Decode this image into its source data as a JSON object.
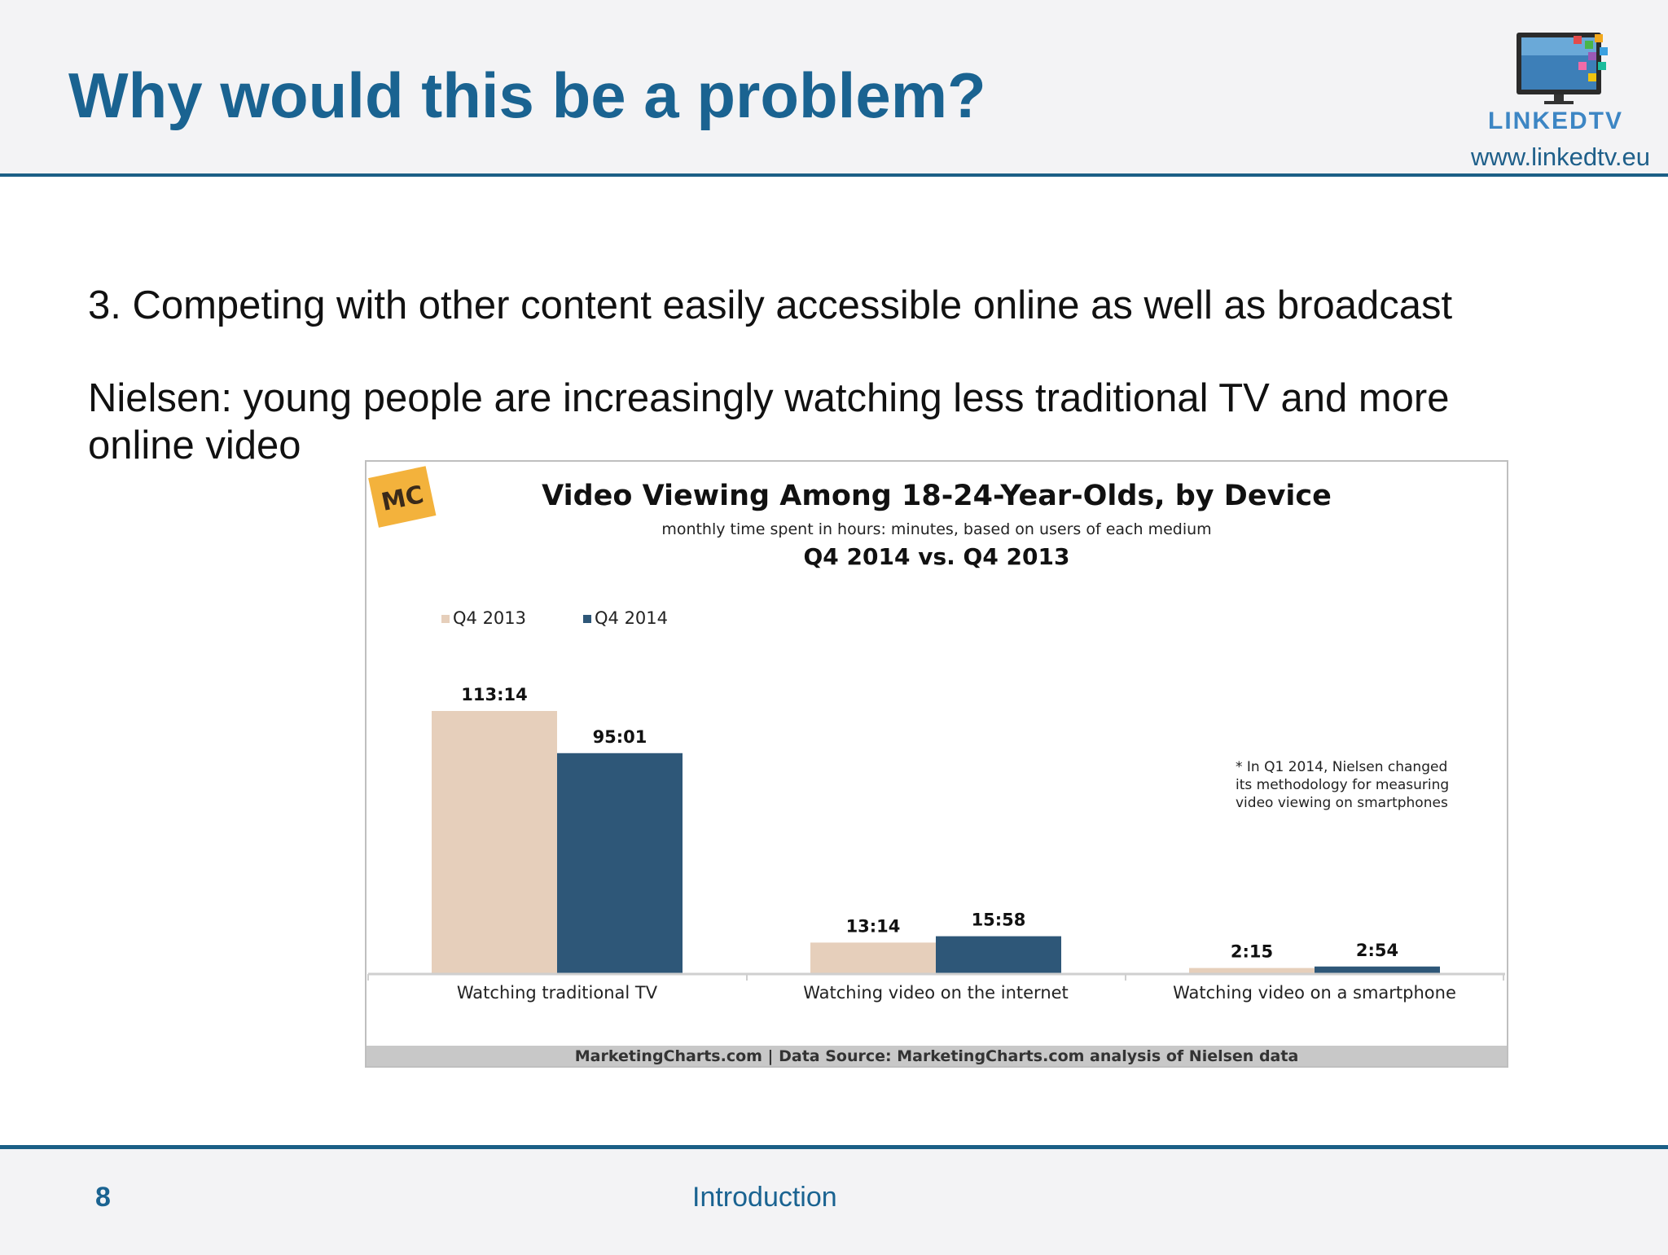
{
  "slide": {
    "title": "Why would this be a problem?",
    "logo_text": "LINKEDTV",
    "logo_url": "www.linkedtv.eu",
    "point": "3. Competing with other content easily accessible online as well as broadcast",
    "nielsen": "Nielsen: young people are increasingly watching less traditional TV and more online video",
    "page_number": "8",
    "section": "Introduction"
  },
  "colors": {
    "accent": "#1a6391",
    "q4_2013": "#e6cfbb",
    "q4_2014": "#2e5778",
    "source_bar": "#c8c8c8",
    "mc_logo": "#f3b23c"
  },
  "chart_data": {
    "type": "bar",
    "logo": "MC",
    "title": "Video Viewing Among 18-24-Year-Olds, by Device",
    "subtitle": "monthly time spent in hours: minutes, based on users of each medium",
    "subtitle2": "Q4 2014 vs. Q4 2013",
    "categories": [
      "Watching traditional TV",
      "Watching video on the internet",
      "Watching video on a smartphone"
    ],
    "series": [
      {
        "name": "Q4 2013",
        "values": [
          113.23,
          13.23,
          2.25
        ],
        "labels": [
          "113:14",
          "13:14",
          "2:15"
        ]
      },
      {
        "name": "Q4 2014",
        "values": [
          95.02,
          15.97,
          2.9
        ],
        "labels": [
          "95:01",
          "15:58",
          "2:54"
        ]
      }
    ],
    "ylim": [
      0,
      113.23
    ],
    "legend_position": "top-left",
    "grid": false,
    "note": [
      "* In Q1 2014, Nielsen changed",
      "its methodology for measuring",
      "video viewing on smartphones"
    ],
    "source": "MarketingCharts.com | Data Source: MarketingCharts.com analysis of Nielsen data"
  }
}
